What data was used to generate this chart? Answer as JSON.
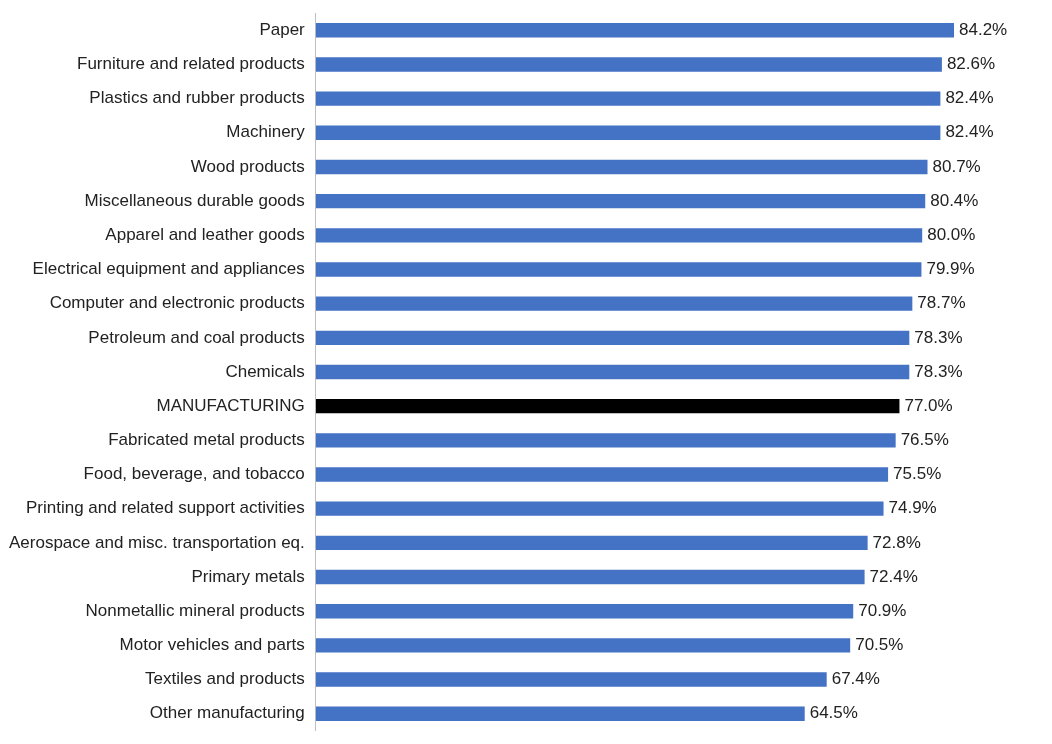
{
  "chart_data": {
    "type": "bar",
    "orientation": "horizontal",
    "categories": [
      "Paper",
      "Furniture and related products",
      "Plastics and rubber products",
      "Machinery",
      "Wood products",
      "Miscellaneous durable goods",
      "Apparel and leather goods",
      "Electrical equipment and appliances",
      "Computer and electronic products",
      "Petroleum and coal products",
      "Chemicals",
      "MANUFACTURING",
      "Fabricated metal products",
      "Food, beverage, and tobacco",
      "Printing and related support activities",
      "Aerospace and misc. transportation eq.",
      "Primary metals",
      "Nonmetallic mineral products",
      "Motor vehicles and parts",
      "Textiles and products",
      "Other manufacturing"
    ],
    "values": [
      84.2,
      82.6,
      82.4,
      82.4,
      80.7,
      80.4,
      80.0,
      79.9,
      78.7,
      78.3,
      78.3,
      77.0,
      76.5,
      75.5,
      74.9,
      72.8,
      72.4,
      70.9,
      70.5,
      67.4,
      64.5
    ],
    "value_labels": [
      "84.2%",
      "82.6%",
      "82.4%",
      "82.4%",
      "80.7%",
      "80.4%",
      "80.0%",
      "79.9%",
      "78.7%",
      "78.3%",
      "78.3%",
      "77.0%",
      "76.5%",
      "75.5%",
      "74.9%",
      "72.8%",
      "72.4%",
      "70.9%",
      "70.5%",
      "67.4%",
      "64.5%"
    ],
    "colors": [
      "#4472c4",
      "#4472c4",
      "#4472c4",
      "#4472c4",
      "#4472c4",
      "#4472c4",
      "#4472c4",
      "#4472c4",
      "#4472c4",
      "#4472c4",
      "#4472c4",
      "#000000",
      "#4472c4",
      "#4472c4",
      "#4472c4",
      "#4472c4",
      "#4472c4",
      "#4472c4",
      "#4472c4",
      "#4472c4",
      "#4472c4"
    ],
    "legend": false
  }
}
